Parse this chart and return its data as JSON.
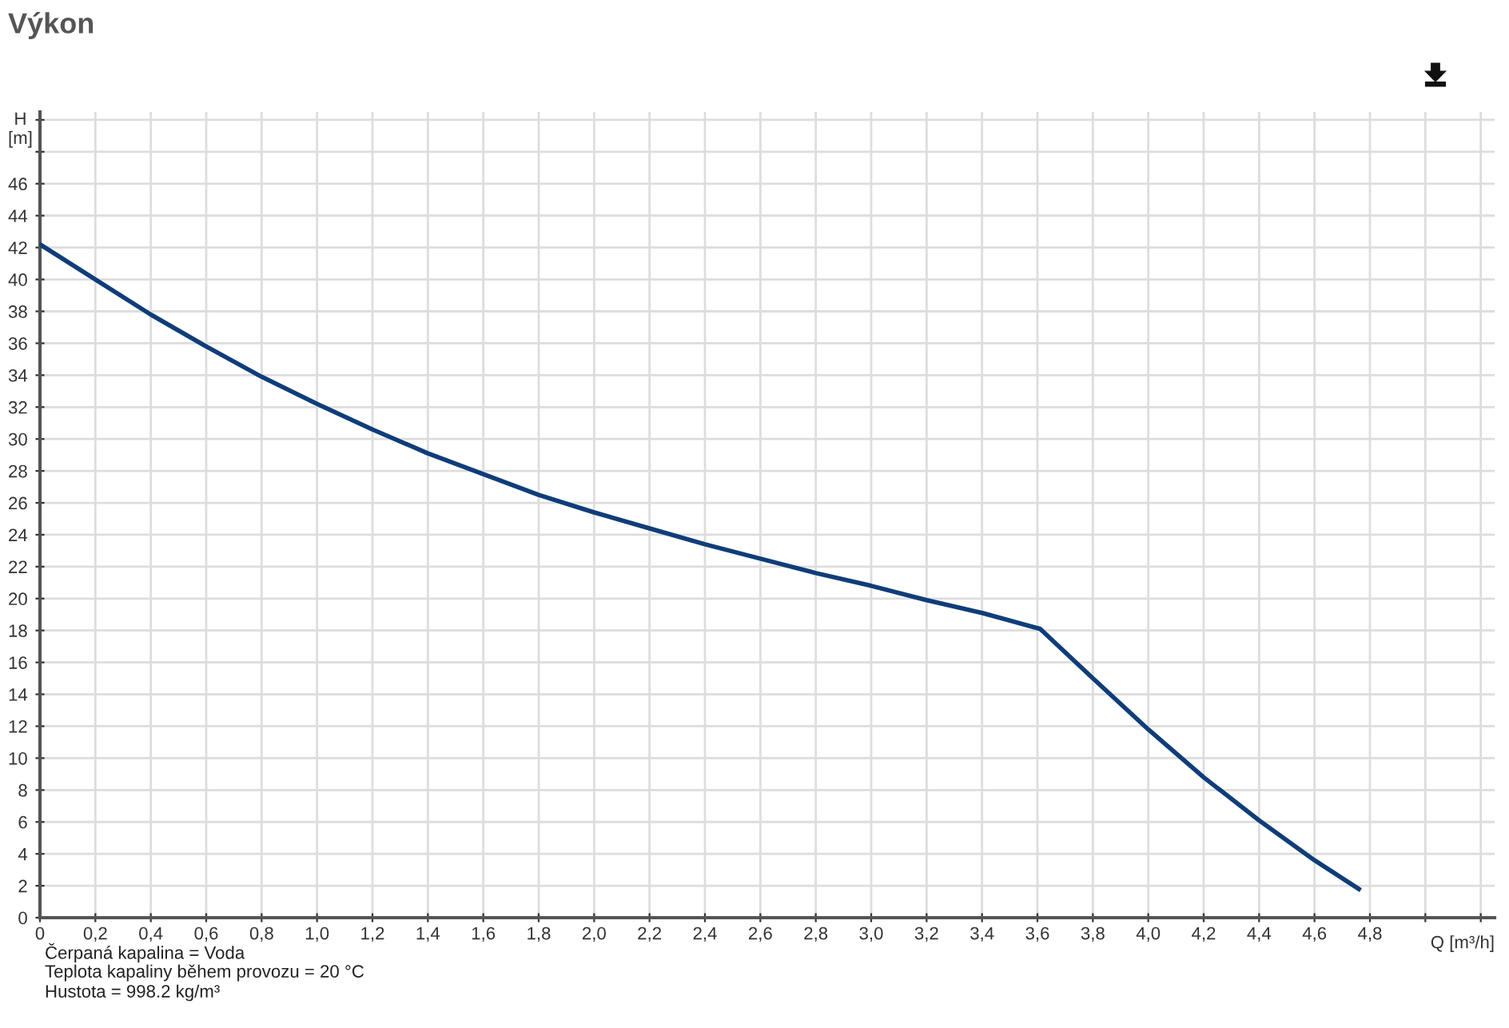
{
  "chart_data": {
    "type": "line",
    "title": "Výkon",
    "xlabel": "Q [m³/h]",
    "ylabel": "H\n[m]",
    "x": [
      0,
      0.2,
      0.4,
      0.6,
      0.8,
      1.0,
      1.2,
      1.4,
      1.6,
      1.8,
      2.0,
      2.2,
      2.4,
      2.6,
      2.8,
      3.0,
      3.2,
      3.4,
      3.61,
      3.8,
      4.0,
      4.2,
      4.4,
      4.6,
      4.76
    ],
    "series": [
      {
        "color": "#0f3d7a",
        "values": [
          42.2,
          40.0,
          37.8,
          35.8,
          33.9,
          32.2,
          30.6,
          29.1,
          27.8,
          26.5,
          25.4,
          24.4,
          23.4,
          22.5,
          21.6,
          20.8,
          19.9,
          19.1,
          18.1,
          15.0,
          11.8,
          8.8,
          6.1,
          3.6,
          1.8
        ]
      }
    ],
    "xlim": [
      0,
      5.25
    ],
    "ylim": [
      0,
      50.5
    ],
    "xticks": [
      {
        "value": 0,
        "label": "0"
      },
      {
        "value": 0.2,
        "label": "0,2"
      },
      {
        "value": 0.4,
        "label": "0,4"
      },
      {
        "value": 0.6,
        "label": "0,6"
      },
      {
        "value": 0.8,
        "label": "0,8"
      },
      {
        "value": 1.0,
        "label": "1,0"
      },
      {
        "value": 1.2,
        "label": "1,2"
      },
      {
        "value": 1.4,
        "label": "1,4"
      },
      {
        "value": 1.6,
        "label": "1,6"
      },
      {
        "value": 1.8,
        "label": "1,8"
      },
      {
        "value": 2.0,
        "label": "2,0"
      },
      {
        "value": 2.2,
        "label": "2,2"
      },
      {
        "value": 2.4,
        "label": "2,4"
      },
      {
        "value": 2.6,
        "label": "2,6"
      },
      {
        "value": 2.8,
        "label": "2,8"
      },
      {
        "value": 3.0,
        "label": "3,0"
      },
      {
        "value": 3.2,
        "label": "3,2"
      },
      {
        "value": 3.4,
        "label": "3,4"
      },
      {
        "value": 3.6,
        "label": "3,6"
      },
      {
        "value": 3.8,
        "label": "3,8"
      },
      {
        "value": 4.0,
        "label": "4,0"
      },
      {
        "value": 4.2,
        "label": "4,2"
      },
      {
        "value": 4.4,
        "label": "4,4"
      },
      {
        "value": 4.6,
        "label": "4,6"
      },
      {
        "value": 4.8,
        "label": "4,8"
      },
      {
        "value": 5.0,
        "label": null
      },
      {
        "value": 5.2,
        "label": null
      }
    ],
    "yticks": [
      0,
      2,
      4,
      6,
      8,
      10,
      12,
      14,
      16,
      18,
      20,
      22,
      24,
      26,
      28,
      30,
      32,
      34,
      36,
      38,
      40,
      42,
      44,
      46,
      {
        "value": 48,
        "label": null
      },
      {
        "value": 50,
        "label": null
      }
    ],
    "grid": true,
    "marker": "none",
    "line_style": "solid",
    "annotations": [
      "Čerpaná kapalina = Voda",
      "Teplota kapaliny během provozu = 20 °C",
      "Hustota = 998.2 kg/m³"
    ]
  }
}
